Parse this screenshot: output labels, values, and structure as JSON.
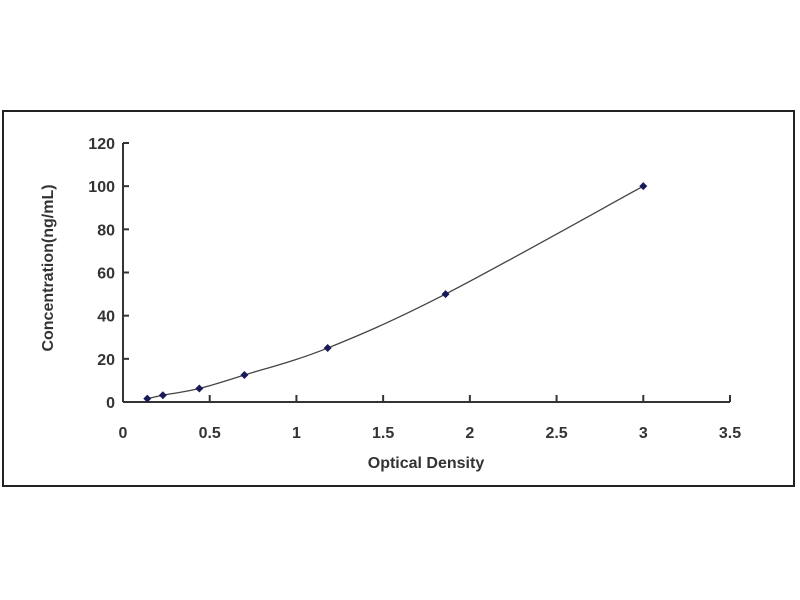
{
  "chart_data": {
    "type": "scatter",
    "title": "",
    "xlabel": "Optical Density",
    "ylabel": "Concentration(ng/mL)",
    "xlim": [
      0,
      3.5
    ],
    "ylim": [
      0,
      120
    ],
    "xticks": [
      "0",
      "0.5",
      "1",
      "1.5",
      "2",
      "2.5",
      "3",
      "3.5"
    ],
    "yticks": [
      "0",
      "20",
      "40",
      "60",
      "80",
      "100",
      "120"
    ],
    "grid": false,
    "legend": "none",
    "trendline": "smooth curve",
    "series": [
      {
        "x": [
          0.14,
          0.23,
          0.44,
          0.7,
          1.18,
          1.86,
          3.0
        ],
        "y": [
          1.56,
          3.12,
          6.25,
          12.5,
          25,
          50,
          100
        ]
      }
    ],
    "colors": {
      "marker": "#1a1a5a",
      "line": "#444444",
      "axis": "#333333"
    }
  }
}
